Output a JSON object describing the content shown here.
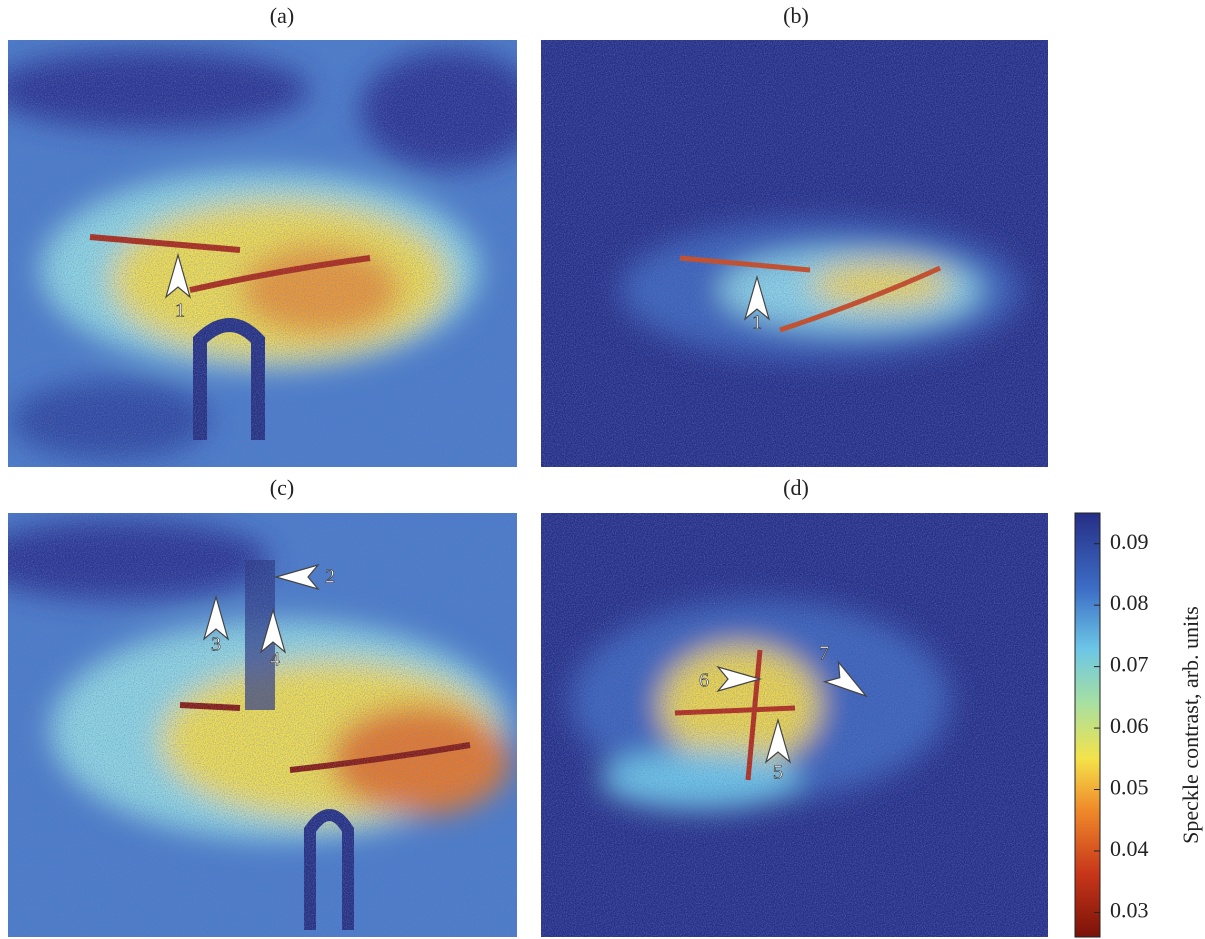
{
  "panels": [
    {
      "label": "(a)",
      "markers": [
        "1"
      ]
    },
    {
      "label": "(b)",
      "markers": [
        "1"
      ]
    },
    {
      "label": "(c)",
      "markers": [
        "2",
        "3",
        "4"
      ]
    },
    {
      "label": "(d)",
      "markers": [
        "6",
        "7",
        "5"
      ]
    }
  ],
  "colorbar": {
    "label": "Speckle contrast, arb. units",
    "lim": [
      0.026,
      0.095
    ],
    "ticks": [
      0.09,
      0.08,
      0.07,
      0.06,
      0.05,
      0.04,
      0.03
    ]
  }
}
